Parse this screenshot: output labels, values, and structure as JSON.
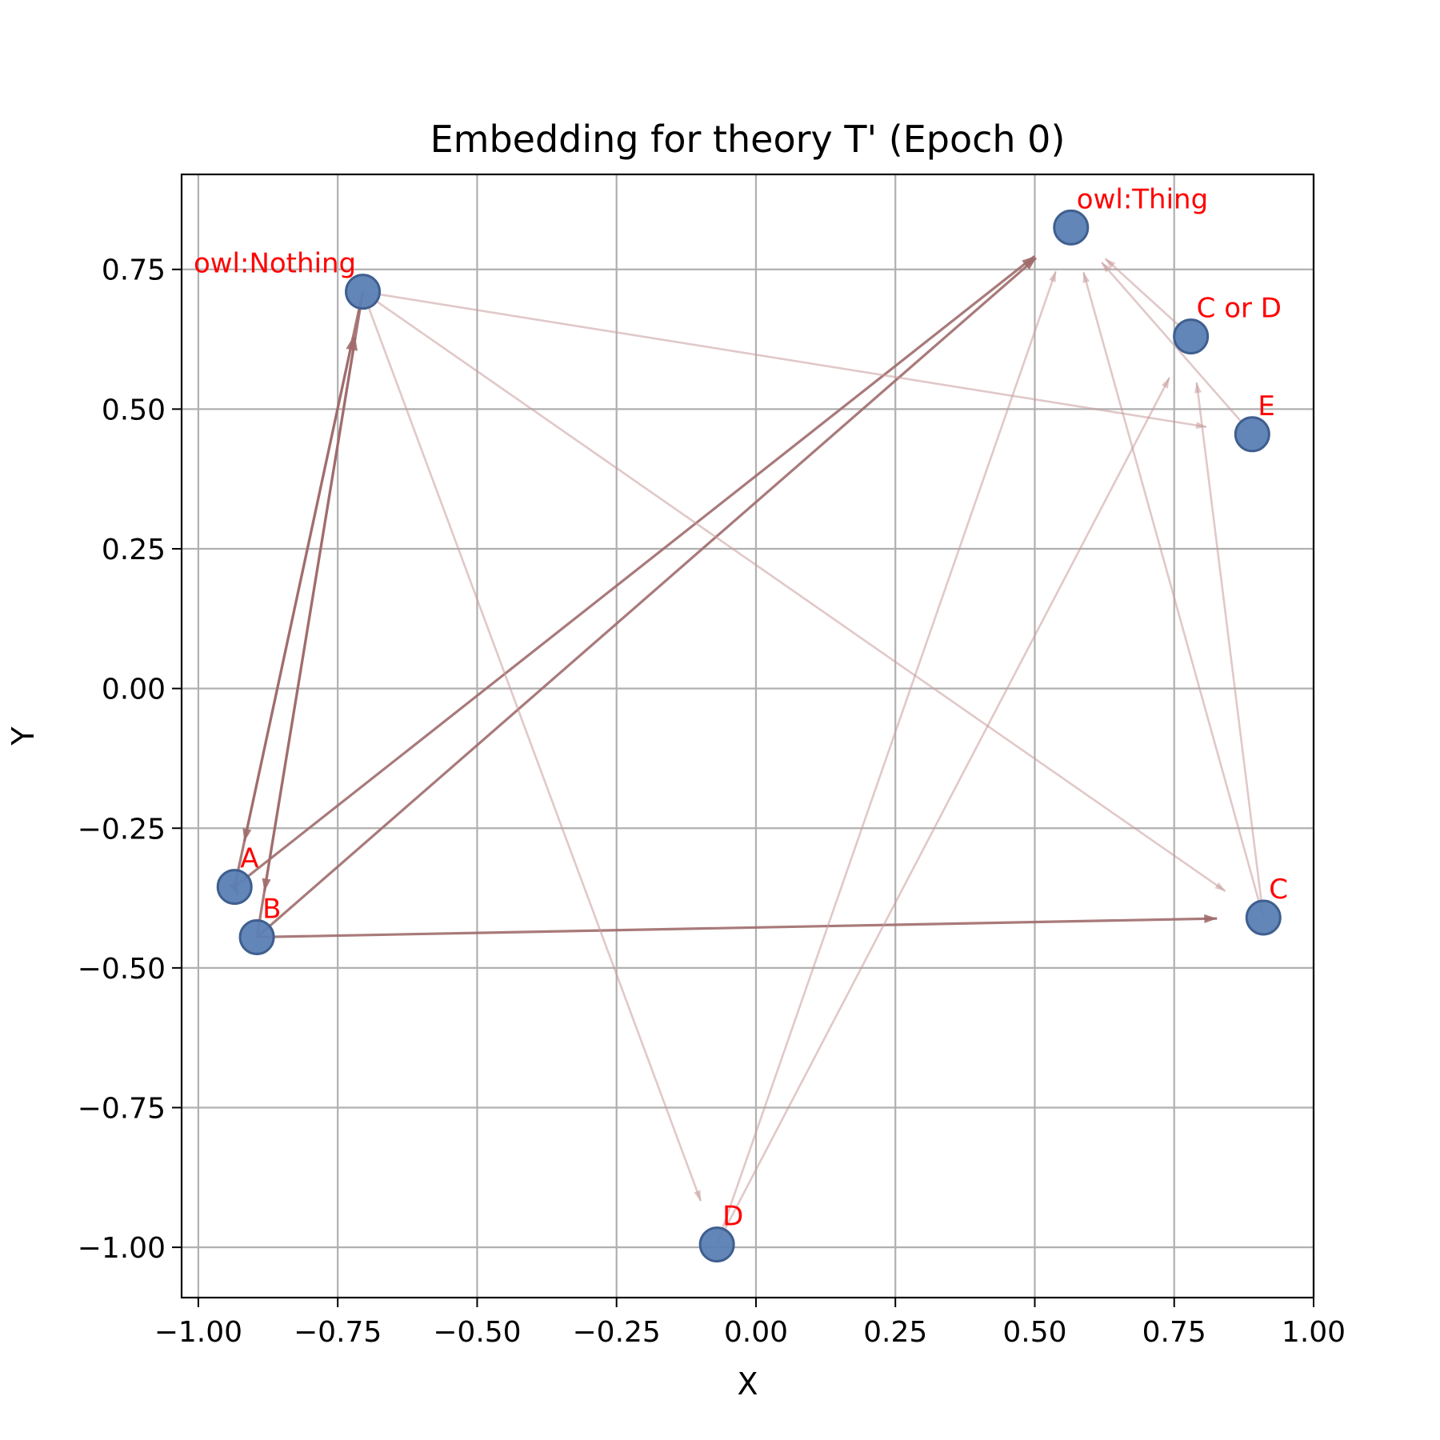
{
  "chart_data": {
    "type": "scatter",
    "title": "Embedding for theory T' (Epoch 0)",
    "xlabel": "X",
    "ylabel": "Y",
    "xlim": [
      -1.03,
      1.0
    ],
    "ylim": [
      -1.09,
      0.92
    ],
    "xticks": [
      -1.0,
      -0.75,
      -0.5,
      -0.25,
      0.0,
      0.25,
      0.5,
      0.75,
      1.0
    ],
    "xtick_labels": [
      "−1.00",
      "−0.75",
      "−0.50",
      "−0.25",
      "0.00",
      "0.25",
      "0.50",
      "0.75",
      "1.00"
    ],
    "yticks": [
      -1.0,
      -0.75,
      -0.5,
      -0.25,
      0.0,
      0.25,
      0.5,
      0.75
    ],
    "ytick_labels": [
      "−1.00",
      "−0.75",
      "−0.50",
      "−0.25",
      "0.00",
      "0.25",
      "0.50",
      "0.75"
    ],
    "grid": true,
    "points": [
      {
        "label": "owl:Nothing",
        "x": -0.705,
        "y": 0.71
      },
      {
        "label": "owl:Thing",
        "x": 0.565,
        "y": 0.825
      },
      {
        "label": "C or D",
        "x": 0.78,
        "y": 0.63
      },
      {
        "label": "E",
        "x": 0.89,
        "y": 0.455
      },
      {
        "label": "A",
        "x": -0.935,
        "y": -0.355
      },
      {
        "label": "B",
        "x": -0.895,
        "y": -0.445
      },
      {
        "label": "C",
        "x": 0.91,
        "y": -0.41
      },
      {
        "label": "D",
        "x": -0.07,
        "y": -0.995
      }
    ],
    "edges": [
      {
        "from": "owl:Nothing",
        "to": "A",
        "strength": "strong"
      },
      {
        "from": "owl:Nothing",
        "to": "B",
        "strength": "strong"
      },
      {
        "from": "A",
        "to": "owl:Nothing",
        "strength": "strong"
      },
      {
        "from": "B",
        "to": "owl:Nothing",
        "strength": "strong"
      },
      {
        "from": "A",
        "to": "owl:Thing",
        "strength": "strong"
      },
      {
        "from": "B",
        "to": "owl:Thing",
        "strength": "strong"
      },
      {
        "from": "A",
        "to": "B",
        "strength": "strong"
      },
      {
        "from": "B",
        "to": "C",
        "strength": "strong"
      },
      {
        "from": "owl:Nothing",
        "to": "E",
        "strength": "weak"
      },
      {
        "from": "owl:Nothing",
        "to": "C",
        "strength": "weak"
      },
      {
        "from": "owl:Nothing",
        "to": "D",
        "strength": "weak"
      },
      {
        "from": "D",
        "to": "owl:Thing",
        "strength": "weak"
      },
      {
        "from": "D",
        "to": "C or D",
        "strength": "weak"
      },
      {
        "from": "C",
        "to": "owl:Thing",
        "strength": "weak"
      },
      {
        "from": "C",
        "to": "C or D",
        "strength": "weak"
      },
      {
        "from": "E",
        "to": "owl:Thing",
        "strength": "weak"
      },
      {
        "from": "C or D",
        "to": "owl:Thing",
        "strength": "weak"
      }
    ],
    "colors": {
      "point_fill": "#5b7fb5",
      "point_edge": "#3f5f8f",
      "label": "#ff0000",
      "edge_strong": "#a06b6b",
      "edge_weak": "#c99a9a",
      "grid": "#b0b0b0",
      "axes": "#000000"
    }
  }
}
